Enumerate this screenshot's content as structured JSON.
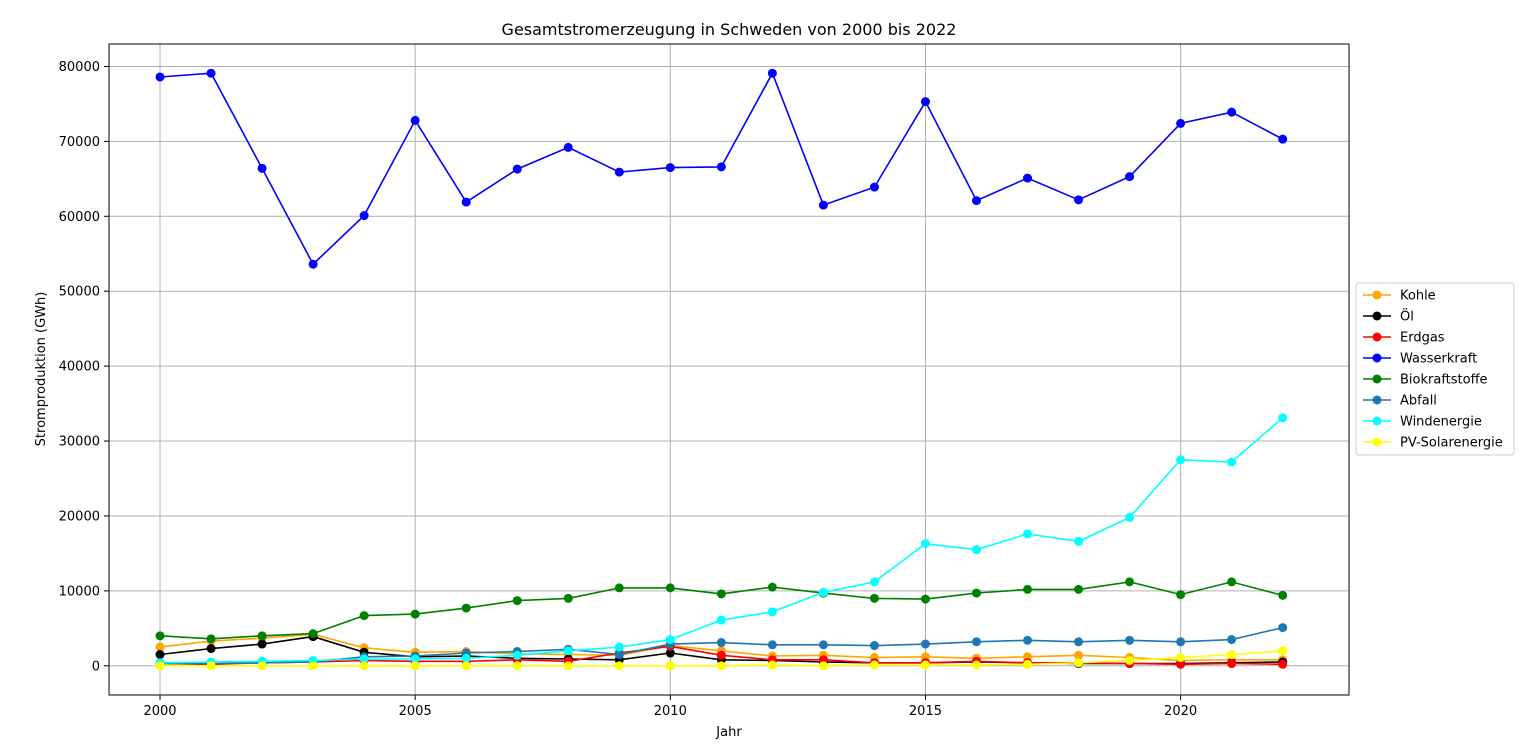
{
  "chart_data": {
    "type": "line",
    "title": "Gesamtstromerzeugung in Schweden von 2000 bis 2022",
    "xlabel": "Jahr",
    "ylabel": "Stromproduktion (GWh)",
    "x": [
      2000,
      2001,
      2002,
      2003,
      2004,
      2005,
      2006,
      2007,
      2008,
      2009,
      2010,
      2011,
      2012,
      2013,
      2014,
      2015,
      2016,
      2017,
      2018,
      2019,
      2020,
      2021,
      2022
    ],
    "xlim": [
      1999,
      2023.3
    ],
    "ylim": [
      -3900,
      83000
    ],
    "xticks": [
      2000,
      2005,
      2010,
      2015,
      2020
    ],
    "yticks": [
      0,
      10000,
      20000,
      30000,
      40000,
      50000,
      60000,
      70000,
      80000
    ],
    "grid": true,
    "legend_position": "center-right",
    "series": [
      {
        "name": "Kohle",
        "color": "#ffa500",
        "values": [
          2500,
          3300,
          3700,
          4200,
          2400,
          1800,
          1900,
          1600,
          1500,
          1400,
          2700,
          2000,
          1300,
          1400,
          1100,
          1200,
          1000,
          1200,
          1400,
          1100,
          700,
          800,
          800
        ]
      },
      {
        "name": "Öl",
        "color": "#000000",
        "values": [
          1500,
          2300,
          2900,
          3900,
          1800,
          1200,
          1300,
          1000,
          900,
          800,
          1700,
          800,
          700,
          500,
          400,
          400,
          500,
          400,
          300,
          300,
          300,
          400,
          500
        ]
      },
      {
        "name": "Erdgas",
        "color": "#ff0000",
        "values": [
          300,
          200,
          400,
          500,
          700,
          600,
          600,
          800,
          600,
          1700,
          2600,
          1400,
          800,
          800,
          400,
          400,
          600,
          400,
          400,
          300,
          200,
          300,
          200
        ]
      },
      {
        "name": "Wasserkraft",
        "color": "#0000ff",
        "values": [
          78600,
          79100,
          66400,
          53600,
          60100,
          72800,
          61900,
          66300,
          69200,
          65900,
          66500,
          66600,
          79100,
          61500,
          63900,
          75300,
          62100,
          65100,
          62200,
          65300,
          72400,
          73900,
          70300
        ]
      },
      {
        "name": "Biokraftstoffe",
        "color": "#008000",
        "values": [
          4000,
          3600,
          4000,
          4300,
          6700,
          6900,
          7700,
          8700,
          9000,
          10400,
          10400,
          9600,
          10500,
          9700,
          9000,
          8900,
          9700,
          10200,
          10200,
          11200,
          9500,
          11200,
          9400
        ]
      },
      {
        "name": "Abfall",
        "color": "#1f77b4",
        "values": [
          300,
          300,
          400,
          500,
          1200,
          1300,
          1700,
          1900,
          2200,
          1500,
          2900,
          3100,
          2800,
          2800,
          2700,
          2900,
          3200,
          3400,
          3200,
          3400,
          3200,
          3500,
          5100
        ]
      },
      {
        "name": "Windenergie",
        "color": "#00ffff",
        "values": [
          400,
          500,
          600,
          700,
          900,
          900,
          1000,
          1400,
          2000,
          2500,
          3500,
          6100,
          7200,
          9800,
          11200,
          16300,
          15500,
          17600,
          16600,
          19800,
          27500,
          27200,
          33100
        ]
      },
      {
        "name": "PV-Solarenergie",
        "color": "#ffff00",
        "values": [
          0,
          0,
          0,
          0,
          0,
          0,
          0,
          0,
          0,
          0,
          0,
          0,
          100,
          0,
          100,
          100,
          100,
          200,
          400,
          700,
          1100,
          1500,
          2000
        ]
      }
    ]
  }
}
